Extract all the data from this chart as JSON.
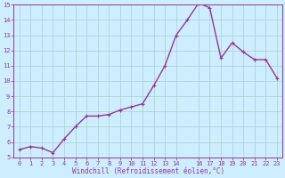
{
  "x": [
    0,
    1,
    2,
    3,
    4,
    5,
    6,
    7,
    8,
    9,
    10,
    11,
    12,
    13,
    14,
    15,
    16,
    17,
    18,
    19,
    20,
    21,
    22,
    23
  ],
  "y": [
    5.5,
    5.7,
    5.6,
    5.3,
    6.2,
    7.0,
    7.7,
    7.7,
    7.8,
    8.1,
    8.3,
    8.5,
    9.7,
    11.0,
    13.0,
    14.0,
    15.1,
    14.8,
    11.5,
    12.5,
    11.9,
    11.4,
    11.4,
    10.2
  ],
  "line_color": "#993399",
  "marker": "+",
  "marker_size": 3,
  "bg_color": "#cceeff",
  "grid_color": "#aacccc",
  "xlabel": "Windchill (Refroidissement éolien,°C)",
  "xlabel_color": "#993399",
  "tick_color": "#993399",
  "ylim": [
    5,
    15
  ],
  "xlim_min": -0.5,
  "xlim_max": 23.5,
  "yticks": [
    5,
    6,
    7,
    8,
    9,
    10,
    11,
    12,
    13,
    14,
    15
  ],
  "xticks": [
    0,
    1,
    2,
    3,
    4,
    5,
    6,
    7,
    8,
    9,
    10,
    11,
    12,
    13,
    14,
    16,
    17,
    18,
    19,
    20,
    21,
    22,
    23
  ],
  "xtick_labels": [
    "0",
    "1",
    "2",
    "3",
    "4",
    "5",
    "6",
    "7",
    "8",
    "9",
    "10",
    "11",
    "12",
    "13",
    "14",
    "16",
    "17",
    "18",
    "19",
    "20",
    "21",
    "22",
    "23"
  ],
  "line_width": 1.0,
  "spine_color": "#993399",
  "tick_fontsize": 5,
  "xlabel_fontsize": 5.5,
  "markeredgewidth": 0.8
}
